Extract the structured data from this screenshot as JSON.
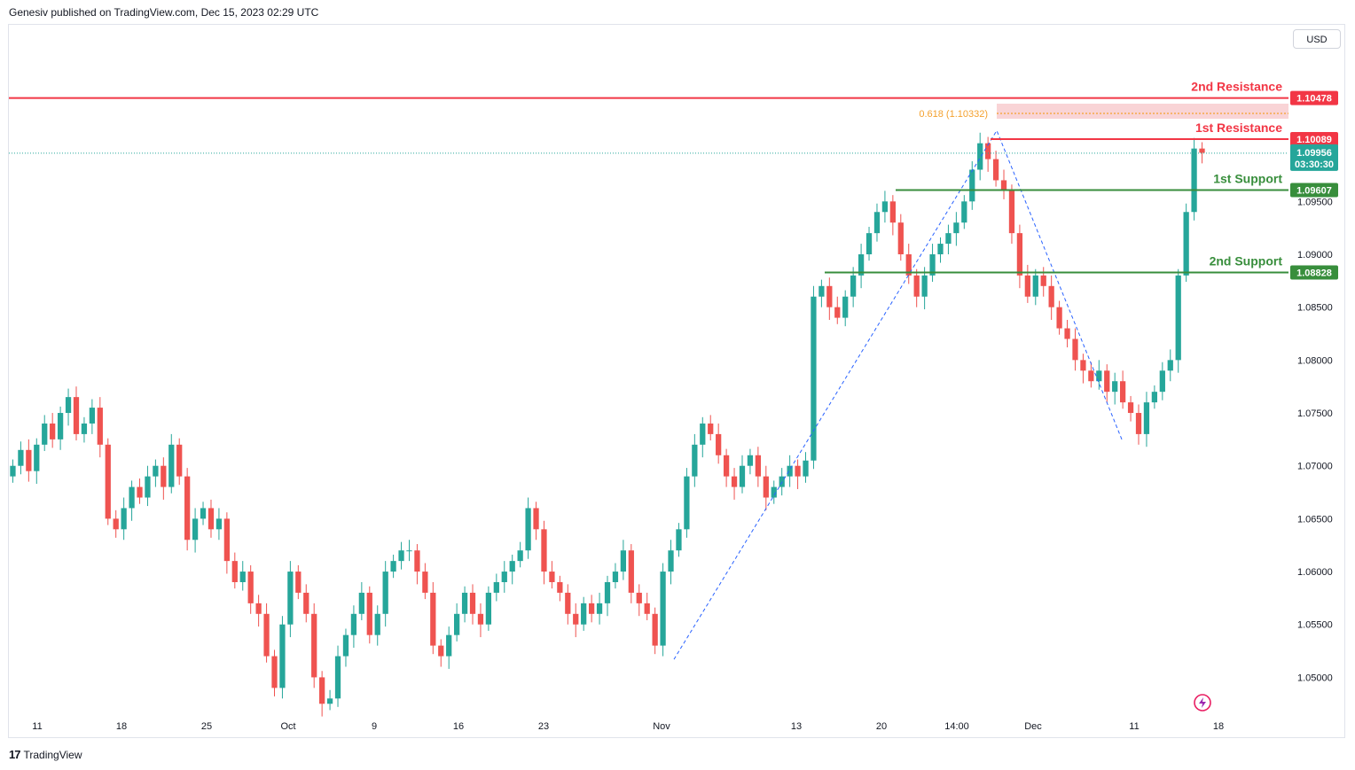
{
  "header": {
    "publisher": "Genesiv published on TradingView.com, Dec 15, 2023 02:29 UTC"
  },
  "currency_button": "USD",
  "footer": {
    "brand": "TradingView"
  },
  "colors": {
    "up": "#26a69a",
    "down": "#ef5350",
    "resistance": "#f23645",
    "support": "#388e3c",
    "fib": "#f4a12e",
    "trend": "#2962ff"
  },
  "chart_data": {
    "type": "candlestick",
    "symbol_currency": "USD",
    "y_ticks": [
      "1.09500",
      "1.09000",
      "1.08500",
      "1.08000",
      "1.07500",
      "1.07000",
      "1.06500",
      "1.06000",
      "1.05500",
      "1.05000"
    ],
    "x_ticks": [
      "11",
      "18",
      "25",
      "Oct",
      "9",
      "16",
      "23",
      "Nov",
      "13",
      "20",
      "14:00",
      "Dec",
      "11",
      "18"
    ],
    "ylim": [
      1.0466,
      1.1117
    ],
    "levels": [
      {
        "name": "2nd Resistance",
        "value": 1.10478,
        "label": "1.10478",
        "kind": "resistance"
      },
      {
        "name": "1st Resistance",
        "value": 1.10089,
        "label": "1.10089",
        "kind": "resistance"
      },
      {
        "name": "1st Support",
        "value": 1.09607,
        "label": "1.09607",
        "kind": "support"
      },
      {
        "name": "2nd Support",
        "value": 1.08828,
        "label": "1.08828",
        "kind": "support"
      }
    ],
    "fib": {
      "label": "0.618 (1.10332)",
      "value": 1.10332
    },
    "last_price": {
      "value": 1.09956,
      "label": "1.09956",
      "countdown": "03:30:30"
    },
    "trend_points": [
      {
        "date": "Nov 1",
        "price": 1.0517
      },
      {
        "date": "Nov 29",
        "price": 1.1017
      },
      {
        "date": "Dec 8",
        "price": 1.0723
      }
    ],
    "closes": [
      1.07,
      1.0715,
      1.0695,
      1.072,
      1.074,
      1.0725,
      1.075,
      1.0765,
      1.073,
      1.074,
      1.0755,
      1.072,
      1.065,
      1.064,
      1.066,
      1.068,
      1.067,
      1.069,
      1.07,
      1.068,
      1.072,
      1.069,
      1.063,
      1.065,
      1.066,
      1.064,
      1.065,
      1.061,
      1.059,
      1.06,
      1.057,
      1.056,
      1.052,
      1.049,
      1.055,
      1.06,
      1.058,
      1.056,
      1.05,
      1.0475,
      1.048,
      1.052,
      1.054,
      1.056,
      1.058,
      1.054,
      1.056,
      1.06,
      1.061,
      1.062,
      1.062,
      1.06,
      1.058,
      1.053,
      1.052,
      1.054,
      1.056,
      1.058,
      1.056,
      1.055,
      1.058,
      1.059,
      1.06,
      1.061,
      1.062,
      1.066,
      1.064,
      1.06,
      1.059,
      1.058,
      1.056,
      1.055,
      1.057,
      1.056,
      1.057,
      1.059,
      1.06,
      1.062,
      1.058,
      1.057,
      1.056,
      1.053,
      1.06,
      1.062,
      1.064,
      1.069,
      1.072,
      1.074,
      1.073,
      1.071,
      1.069,
      1.068,
      1.07,
      1.071,
      1.069,
      1.067,
      1.068,
      1.069,
      1.07,
      1.069,
      1.0705,
      1.086,
      1.087,
      1.085,
      1.084,
      1.086,
      1.088,
      1.09,
      1.092,
      1.094,
      1.095,
      1.093,
      1.09,
      1.088,
      1.086,
      1.088,
      1.09,
      1.091,
      1.092,
      1.093,
      1.095,
      1.098,
      1.1005,
      1.099,
      1.097,
      1.096,
      1.092,
      1.088,
      1.086,
      1.088,
      1.087,
      1.085,
      1.083,
      1.082,
      1.08,
      1.079,
      1.078,
      1.079,
      1.077,
      1.078,
      1.076,
      1.075,
      1.073,
      1.076,
      1.077,
      1.079,
      1.08,
      1.088,
      1.094,
      1.1,
      1.0996
    ]
  }
}
